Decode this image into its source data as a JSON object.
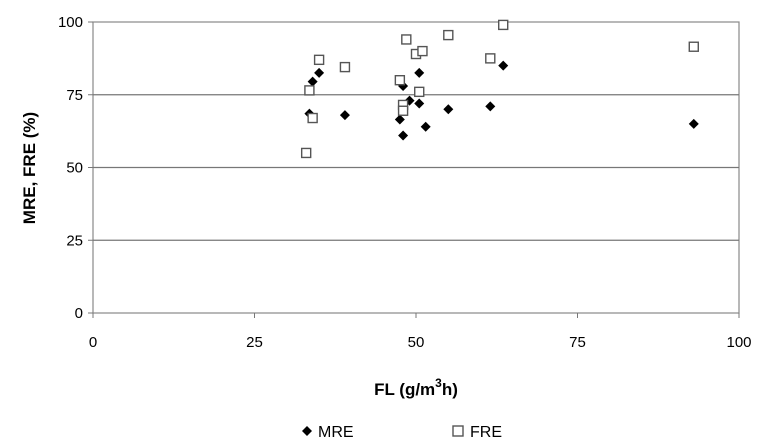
{
  "chart_data": {
    "type": "scatter",
    "title": "",
    "xlabel": "FL (g/m",
    "xlabel_sup": "3",
    "xlabel_tail": "h)",
    "ylabel": "MRE, FRE (%)",
    "xlim": [
      0,
      100
    ],
    "ylim": [
      0,
      100
    ],
    "x_ticks": [
      0,
      25,
      50,
      75,
      100
    ],
    "y_ticks": [
      0,
      25,
      50,
      75,
      100
    ],
    "grid": "horizontal",
    "legend_position": "bottom",
    "series": [
      {
        "name": "MRE",
        "marker": "filled-diamond",
        "color": "#000000",
        "points": [
          [
            33.5,
            68.5
          ],
          [
            34,
            79.5
          ],
          [
            35,
            82.5
          ],
          [
            39,
            68
          ],
          [
            47.5,
            66.5
          ],
          [
            48,
            78
          ],
          [
            48,
            61
          ],
          [
            49,
            73
          ],
          [
            50.5,
            72
          ],
          [
            50.5,
            82.5
          ],
          [
            51.5,
            64
          ],
          [
            55,
            70
          ],
          [
            61.5,
            71
          ],
          [
            63.5,
            85
          ],
          [
            93,
            65
          ]
        ]
      },
      {
        "name": "FRE",
        "marker": "open-square",
        "color": "#000000",
        "points": [
          [
            33,
            55
          ],
          [
            33.5,
            76.5
          ],
          [
            34,
            67
          ],
          [
            35,
            87
          ],
          [
            39,
            84.5
          ],
          [
            47.5,
            80
          ],
          [
            48,
            71.5
          ],
          [
            48,
            69.5
          ],
          [
            48.5,
            94
          ],
          [
            50,
            89
          ],
          [
            50.5,
            76
          ],
          [
            51,
            90
          ],
          [
            55,
            95.5
          ],
          [
            61.5,
            87.5
          ],
          [
            63.5,
            99
          ],
          [
            93,
            91.5
          ]
        ]
      }
    ]
  }
}
